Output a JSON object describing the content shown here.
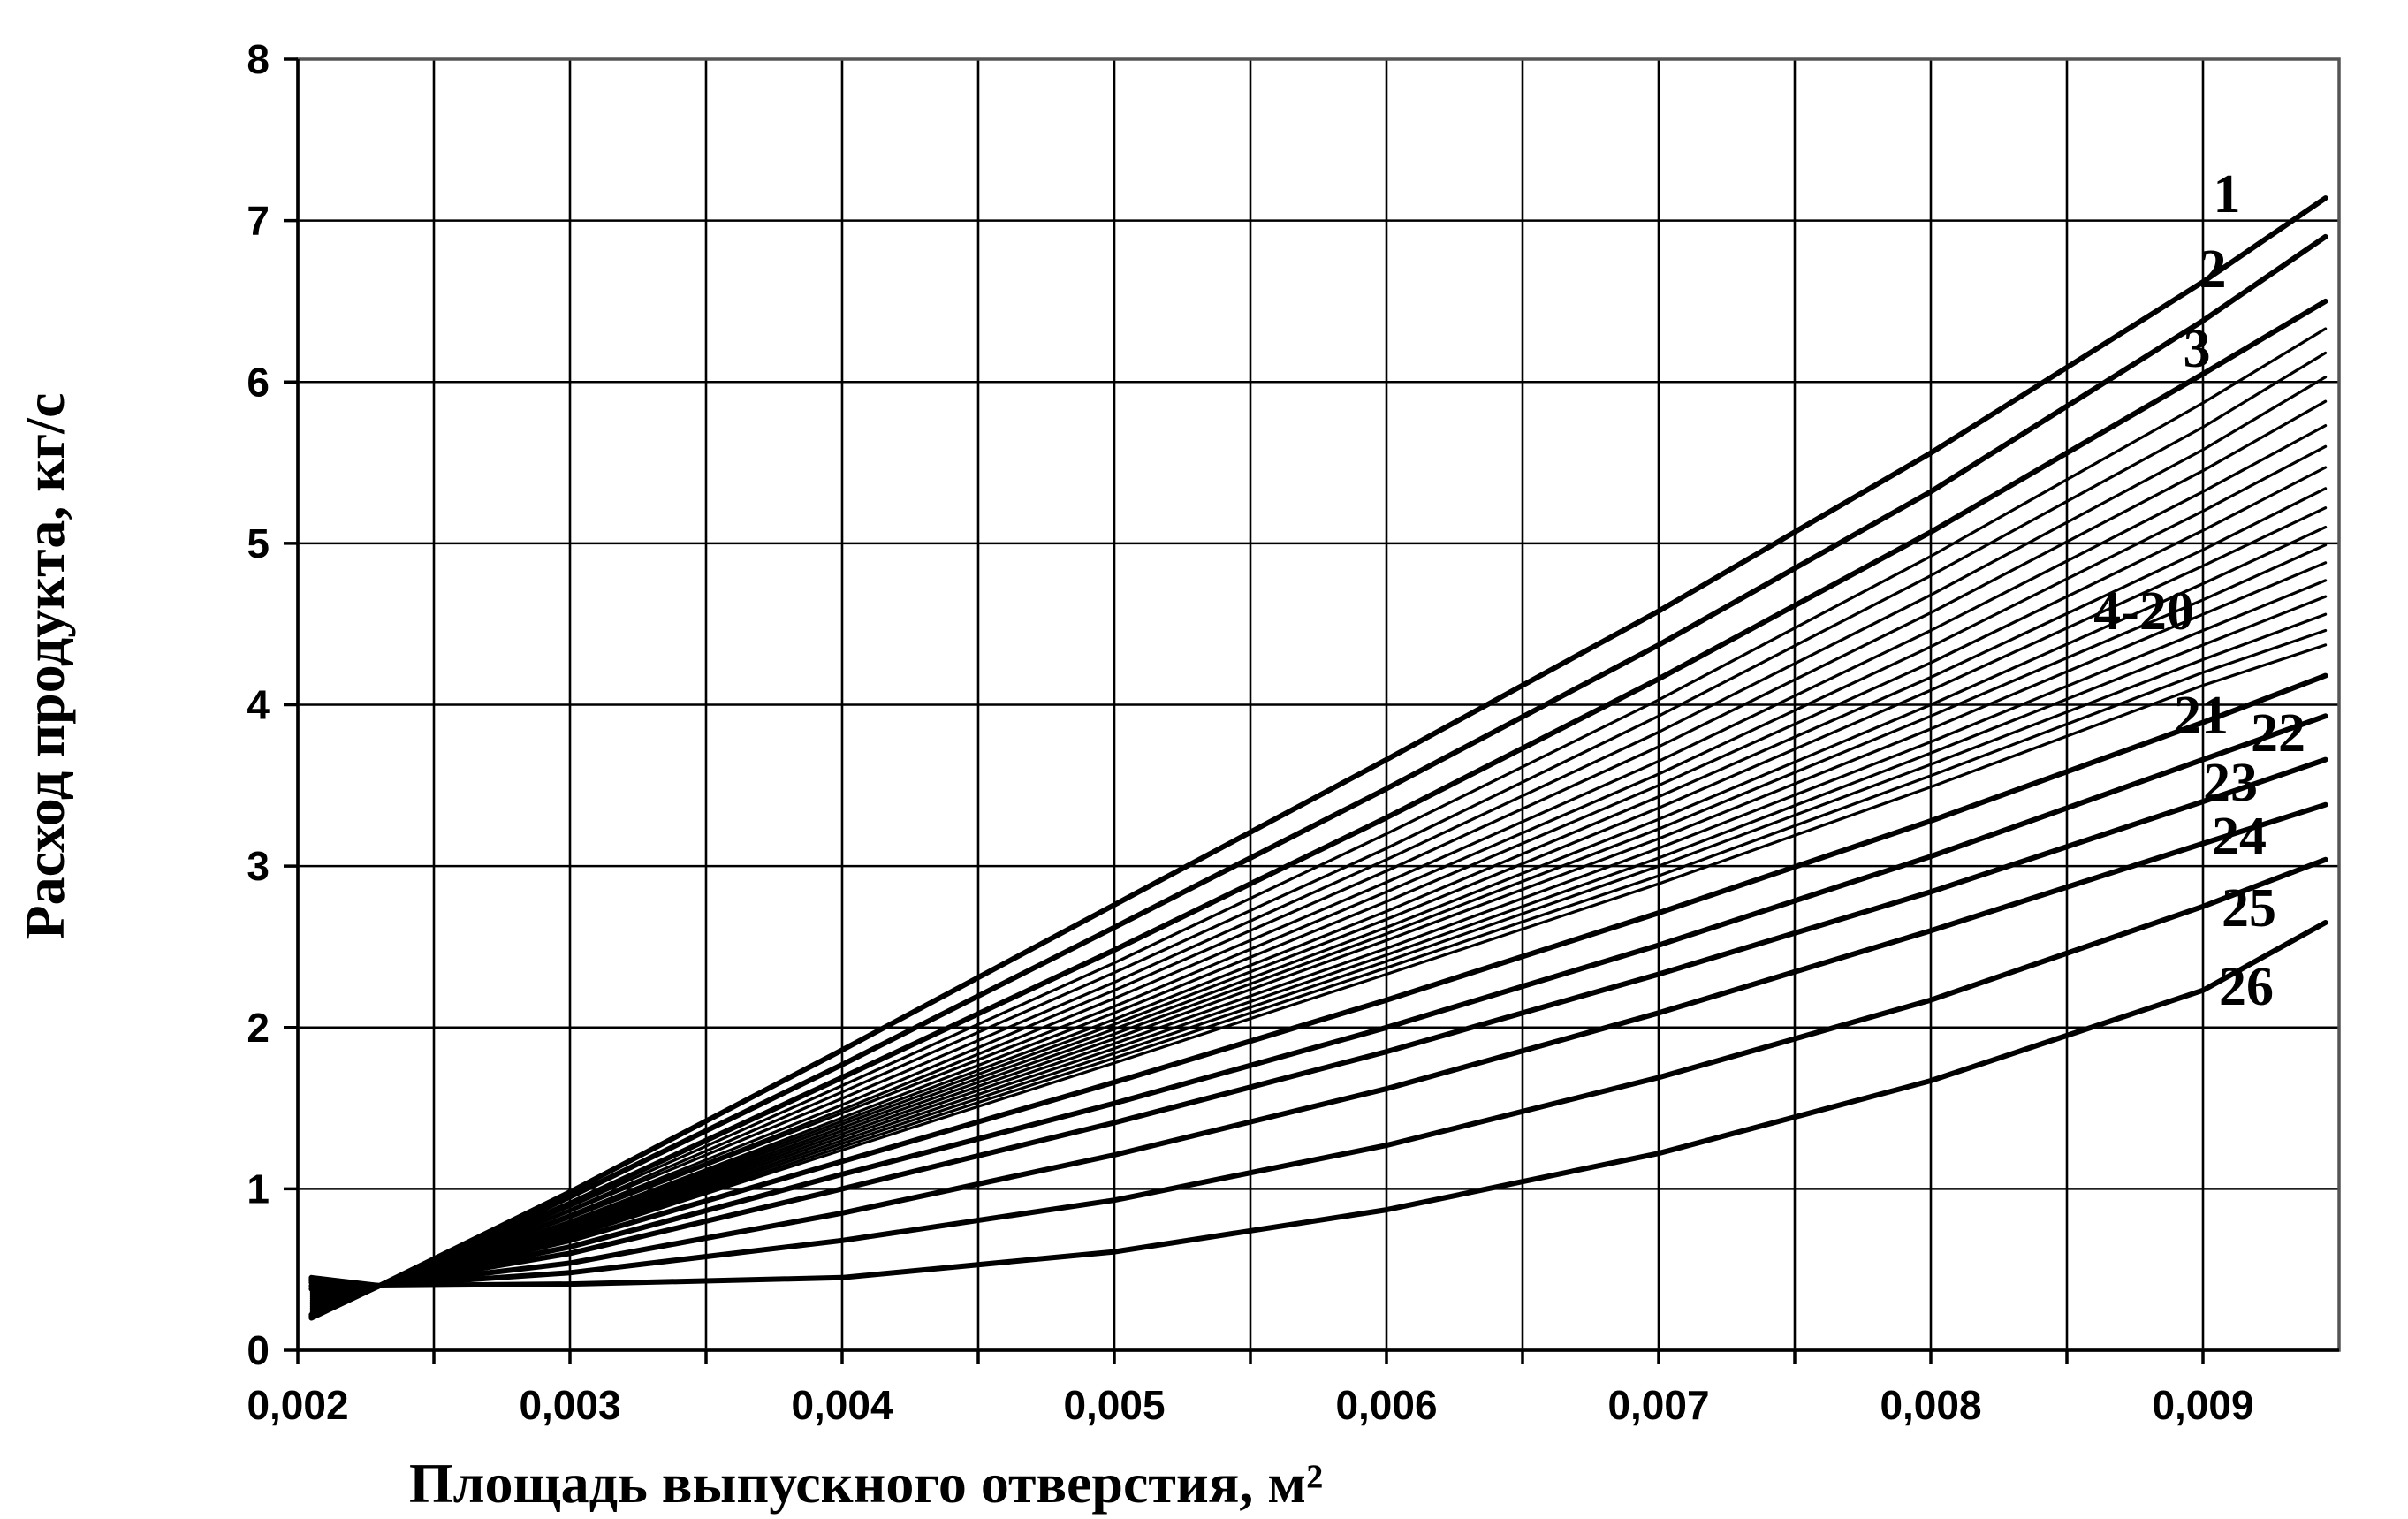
{
  "chart_data": {
    "type": "line",
    "xlabel": "Площадь выпускного отверстия, м²",
    "ylabel": "Расход продукта, кг/с",
    "xlim": [
      0.002,
      0.0095
    ],
    "ylim": [
      0,
      8
    ],
    "x_ticks": [
      {
        "value": 0.002,
        "label": "0,002"
      },
      {
        "value": 0.003,
        "label": "0,003"
      },
      {
        "value": 0.004,
        "label": "0,004"
      },
      {
        "value": 0.005,
        "label": "0,005"
      },
      {
        "value": 0.006,
        "label": "0,006"
      },
      {
        "value": 0.007,
        "label": "0,007"
      },
      {
        "value": 0.008,
        "label": "0,008"
      },
      {
        "value": 0.009,
        "label": "0,009"
      }
    ],
    "y_ticks": [
      {
        "value": 0,
        "label": "0"
      },
      {
        "value": 1,
        "label": "1"
      },
      {
        "value": 2,
        "label": "2"
      },
      {
        "value": 3,
        "label": "3"
      },
      {
        "value": 4,
        "label": "4"
      },
      {
        "value": 5,
        "label": "5"
      },
      {
        "value": 6,
        "label": "6"
      },
      {
        "value": 7,
        "label": "7"
      },
      {
        "value": 8,
        "label": "8"
      }
    ],
    "grid": true,
    "x": [
      0.00205,
      0.0023,
      0.003,
      0.004,
      0.005,
      0.006,
      0.007,
      0.008,
      0.009,
      0.00945
    ],
    "series": [
      {
        "name": "1",
        "values": [
          0.2,
          0.4,
          0.98,
          1.86,
          2.76,
          3.66,
          4.58,
          5.56,
          6.62,
          7.14
        ]
      },
      {
        "name": "2",
        "values": [
          0.21,
          0.4,
          0.95,
          1.77,
          2.62,
          3.48,
          4.37,
          5.32,
          6.38,
          6.9
        ]
      },
      {
        "name": "3",
        "values": [
          0.22,
          0.4,
          0.91,
          1.69,
          2.48,
          3.3,
          4.16,
          5.07,
          6.05,
          6.5
        ]
      },
      {
        "values": [
          0.23,
          0.4,
          0.89,
          1.64,
          2.4,
          3.2,
          4.03,
          4.92,
          5.87,
          6.33
        ]
      },
      {
        "values": [
          0.24,
          0.4,
          0.87,
          1.6,
          2.34,
          3.11,
          3.93,
          4.8,
          5.72,
          6.18
        ]
      },
      {
        "values": [
          0.25,
          0.4,
          0.86,
          1.56,
          2.28,
          3.04,
          3.83,
          4.68,
          5.58,
          6.03
        ]
      },
      {
        "values": [
          0.25,
          0.4,
          0.84,
          1.52,
          2.23,
          2.97,
          3.74,
          4.57,
          5.45,
          5.88
        ]
      },
      {
        "values": [
          0.26,
          0.4,
          0.83,
          1.49,
          2.18,
          2.9,
          3.65,
          4.46,
          5.32,
          5.73
        ]
      },
      {
        "values": [
          0.27,
          0.4,
          0.82,
          1.47,
          2.13,
          2.84,
          3.57,
          4.36,
          5.2,
          5.6
        ]
      },
      {
        "values": [
          0.28,
          0.4,
          0.8,
          1.44,
          2.09,
          2.78,
          3.5,
          4.26,
          5.08,
          5.47
        ]
      },
      {
        "values": [
          0.29,
          0.4,
          0.79,
          1.42,
          2.05,
          2.72,
          3.43,
          4.17,
          4.96,
          5.34
        ]
      },
      {
        "values": [
          0.29,
          0.4,
          0.78,
          1.4,
          2.02,
          2.67,
          3.36,
          4.09,
          4.86,
          5.22
        ]
      },
      {
        "values": [
          0.3,
          0.4,
          0.77,
          1.38,
          1.99,
          2.62,
          3.29,
          4.0,
          4.75,
          5.1
        ]
      },
      {
        "values": [
          0.31,
          0.4,
          0.76,
          1.36,
          1.96,
          2.58,
          3.23,
          3.93,
          4.65,
          4.99
        ]
      },
      {
        "values": [
          0.32,
          0.4,
          0.75,
          1.34,
          1.93,
          2.54,
          3.17,
          3.85,
          4.56,
          4.88
        ]
      },
      {
        "values": [
          0.33,
          0.4,
          0.74,
          1.32,
          1.9,
          2.49,
          3.11,
          3.77,
          4.46,
          4.77
        ]
      },
      {
        "values": [
          0.34,
          0.4,
          0.73,
          1.3,
          1.87,
          2.45,
          3.05,
          3.7,
          4.37,
          4.67
        ]
      },
      {
        "values": [
          0.35,
          0.4,
          0.72,
          1.28,
          1.84,
          2.41,
          3.0,
          3.63,
          4.28,
          4.56
        ]
      },
      {
        "values": [
          0.36,
          0.4,
          0.71,
          1.26,
          1.81,
          2.37,
          2.94,
          3.56,
          4.2,
          4.46
        ]
      },
      {
        "values": [
          0.37,
          0.4,
          0.7,
          1.24,
          1.78,
          2.33,
          2.89,
          3.49,
          4.12,
          4.37
        ]
      },
      {
        "name": "21",
        "values": [
          0.38,
          0.4,
          0.68,
          1.17,
          1.66,
          2.17,
          2.71,
          3.28,
          3.89,
          4.18
        ]
      },
      {
        "name": "22",
        "values": [
          0.4,
          0.4,
          0.64,
          1.09,
          1.53,
          2.0,
          2.51,
          3.06,
          3.66,
          3.93
        ]
      },
      {
        "name": "23",
        "values": [
          0.42,
          0.4,
          0.6,
          1.0,
          1.41,
          1.85,
          2.33,
          2.84,
          3.4,
          3.66
        ]
      },
      {
        "name": "24",
        "values": [
          0.43,
          0.4,
          0.54,
          0.85,
          1.21,
          1.62,
          2.09,
          2.6,
          3.14,
          3.38
        ]
      },
      {
        "name": "25",
        "values": [
          0.44,
          0.4,
          0.48,
          0.68,
          0.93,
          1.27,
          1.69,
          2.17,
          2.75,
          3.04
        ]
      },
      {
        "name": "26",
        "values": [
          0.45,
          0.4,
          0.41,
          0.45,
          0.61,
          0.87,
          1.22,
          1.67,
          2.23,
          2.65
        ]
      }
    ],
    "annotations": [
      "1",
      "2",
      "3",
      "4-20",
      "21",
      "22",
      "23",
      "24",
      "25",
      "26"
    ]
  }
}
